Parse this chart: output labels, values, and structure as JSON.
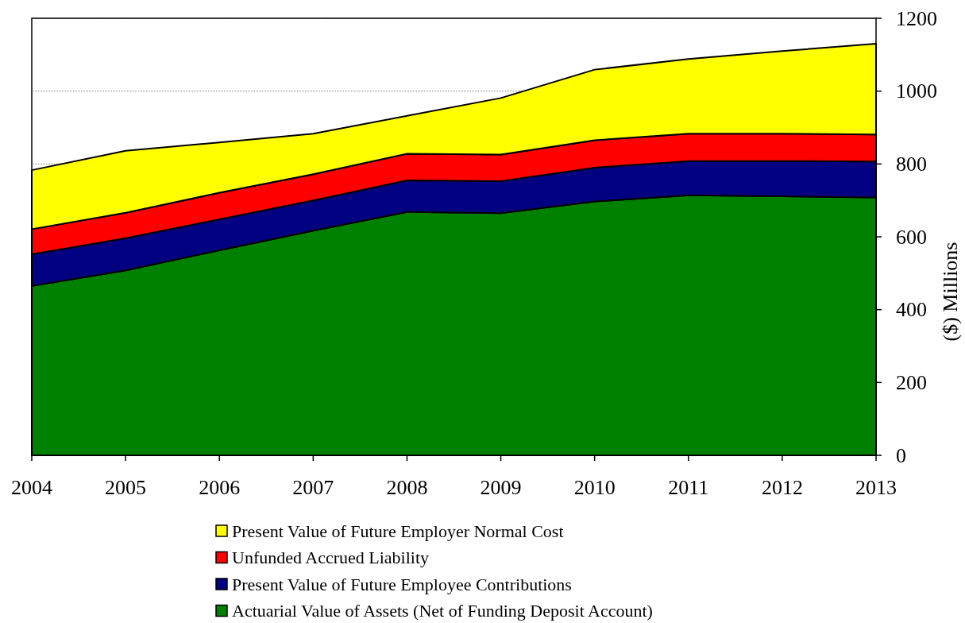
{
  "chart_data": {
    "type": "area",
    "stacked": true,
    "ylabel": "($) Millions",
    "x": [
      2004,
      2005,
      2006,
      2007,
      2008,
      2009,
      2010,
      2011,
      2012,
      2013
    ],
    "xlim": [
      2004,
      2013
    ],
    "xticks": [
      2004,
      2005,
      2006,
      2007,
      2008,
      2009,
      2010,
      2011,
      2012,
      2013
    ],
    "ylim": [
      0,
      1200
    ],
    "yticks": [
      0,
      200,
      400,
      600,
      800,
      1000,
      1200
    ],
    "grid": "y",
    "legend": "bottom",
    "series": [
      {
        "name": "Actuarial Value of Assets (Net of Funding Deposit Account)",
        "color": "#008000",
        "values": [
          465,
          508,
          563,
          617,
          668,
          665,
          697,
          714,
          711,
          708
        ]
      },
      {
        "name": "Present Value of Future Employee Contributions",
        "color": "#000080",
        "values": [
          87,
          88,
          85,
          83,
          87,
          88,
          93,
          94,
          97,
          99
        ]
      },
      {
        "name": "Unfunded Accrued Liability",
        "color": "#ff0000",
        "values": [
          69,
          70,
          73,
          72,
          73,
          73,
          75,
          75,
          75,
          74
        ]
      },
      {
        "name": "Present Value of Future Employer Normal Cost",
        "color": "#ffff00",
        "values": [
          162,
          170,
          138,
          111,
          104,
          155,
          194,
          205,
          227,
          249
        ]
      }
    ]
  }
}
